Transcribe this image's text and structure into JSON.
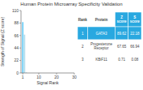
{
  "chart_data": {
    "type": "bar",
    "title": "Human Protein Microarray Specificity Validation",
    "xlabel": "Signal Rank",
    "ylabel": "Strength of Signal (Z score)",
    "x": [
      1,
      2,
      3
    ],
    "values": [
      89.62,
      67.65,
      0.71
    ],
    "colors": [
      "#5bc8f5",
      "#a8d8ea",
      "#a8d8ea"
    ],
    "xlim": [
      0,
      30
    ],
    "xticks": [
      1,
      10,
      20,
      30
    ],
    "ylim": [
      0,
      110
    ],
    "yticks": [
      0,
      22,
      44,
      66,
      88,
      110
    ],
    "grid": false,
    "table": {
      "columns": [
        "Rank",
        "Protein",
        "Z\nscore",
        "S\nscore"
      ],
      "rows": [
        [
          "1",
          "GATA3",
          "89.62",
          "22.18"
        ],
        [
          "2",
          "Progesterone\nReceptor",
          "67.65",
          "66.94"
        ],
        [
          "3",
          "KBiF11",
          "0.71",
          "0.08"
        ]
      ],
      "color": "#29a8e0"
    }
  }
}
